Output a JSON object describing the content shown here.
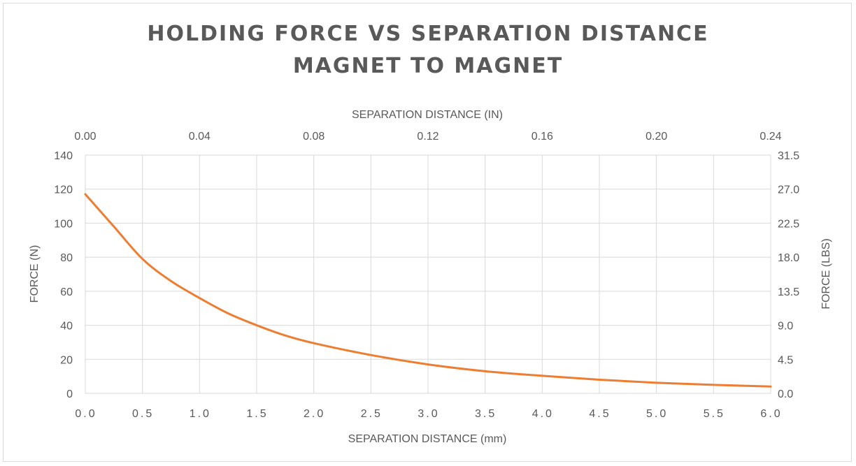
{
  "chart_data": {
    "type": "line",
    "title_lines": [
      "HOLDING FORCE VS SEPARATION DISTANCE",
      "MAGNET TO MAGNET"
    ],
    "xlabel": "SEPARATION DISTANCE (mm)",
    "x2label": "SEPARATION DISTANCE (IN)",
    "ylabel": "FORCE (N)",
    "y2label": "FORCE (LBS)",
    "xlim": [
      0,
      6
    ],
    "ylim": [
      0,
      140
    ],
    "x2lim": [
      0,
      0.24
    ],
    "y2lim": [
      0,
      31.5
    ],
    "x_ticks": [
      "0.0",
      "0.5",
      "1.0",
      "1.5",
      "2.0",
      "2.5",
      "3.0",
      "3.5",
      "4.0",
      "4.5",
      "5.0",
      "5.5",
      "6.0"
    ],
    "x_tick_values": [
      0,
      0.5,
      1,
      1.5,
      2,
      2.5,
      3,
      3.5,
      4,
      4.5,
      5,
      5.5,
      6
    ],
    "x2_ticks": [
      "0.00",
      "0.04",
      "0.08",
      "0.12",
      "0.16",
      "0.20",
      "0.24"
    ],
    "x2_tick_values": [
      0,
      0.04,
      0.08,
      0.12,
      0.16,
      0.2,
      0.24
    ],
    "y_ticks": [
      "0",
      "20",
      "40",
      "60",
      "80",
      "100",
      "120",
      "140"
    ],
    "y_tick_values": [
      0,
      20,
      40,
      60,
      80,
      100,
      120,
      140
    ],
    "y2_ticks": [
      "0.0",
      "4.5",
      "9.0",
      "13.5",
      "18.0",
      "22.5",
      "27.0",
      "31.5"
    ],
    "y2_tick_values": [
      0,
      4.5,
      9,
      13.5,
      18,
      22.5,
      27,
      31.5
    ],
    "grid": true,
    "legend": "none",
    "series": [
      {
        "color": "#ed7d31",
        "x": [
          0,
          0.25,
          0.5,
          0.75,
          1.0,
          1.25,
          1.5,
          1.75,
          2.0,
          2.5,
          3.0,
          3.5,
          4.0,
          4.5,
          5.0,
          5.5,
          6.0
        ],
        "y": [
          117,
          98,
          79,
          66,
          56,
          47,
          40,
          34,
          29.5,
          22.5,
          17,
          13,
          10.3,
          8,
          6.2,
          5,
          4
        ]
      }
    ]
  }
}
